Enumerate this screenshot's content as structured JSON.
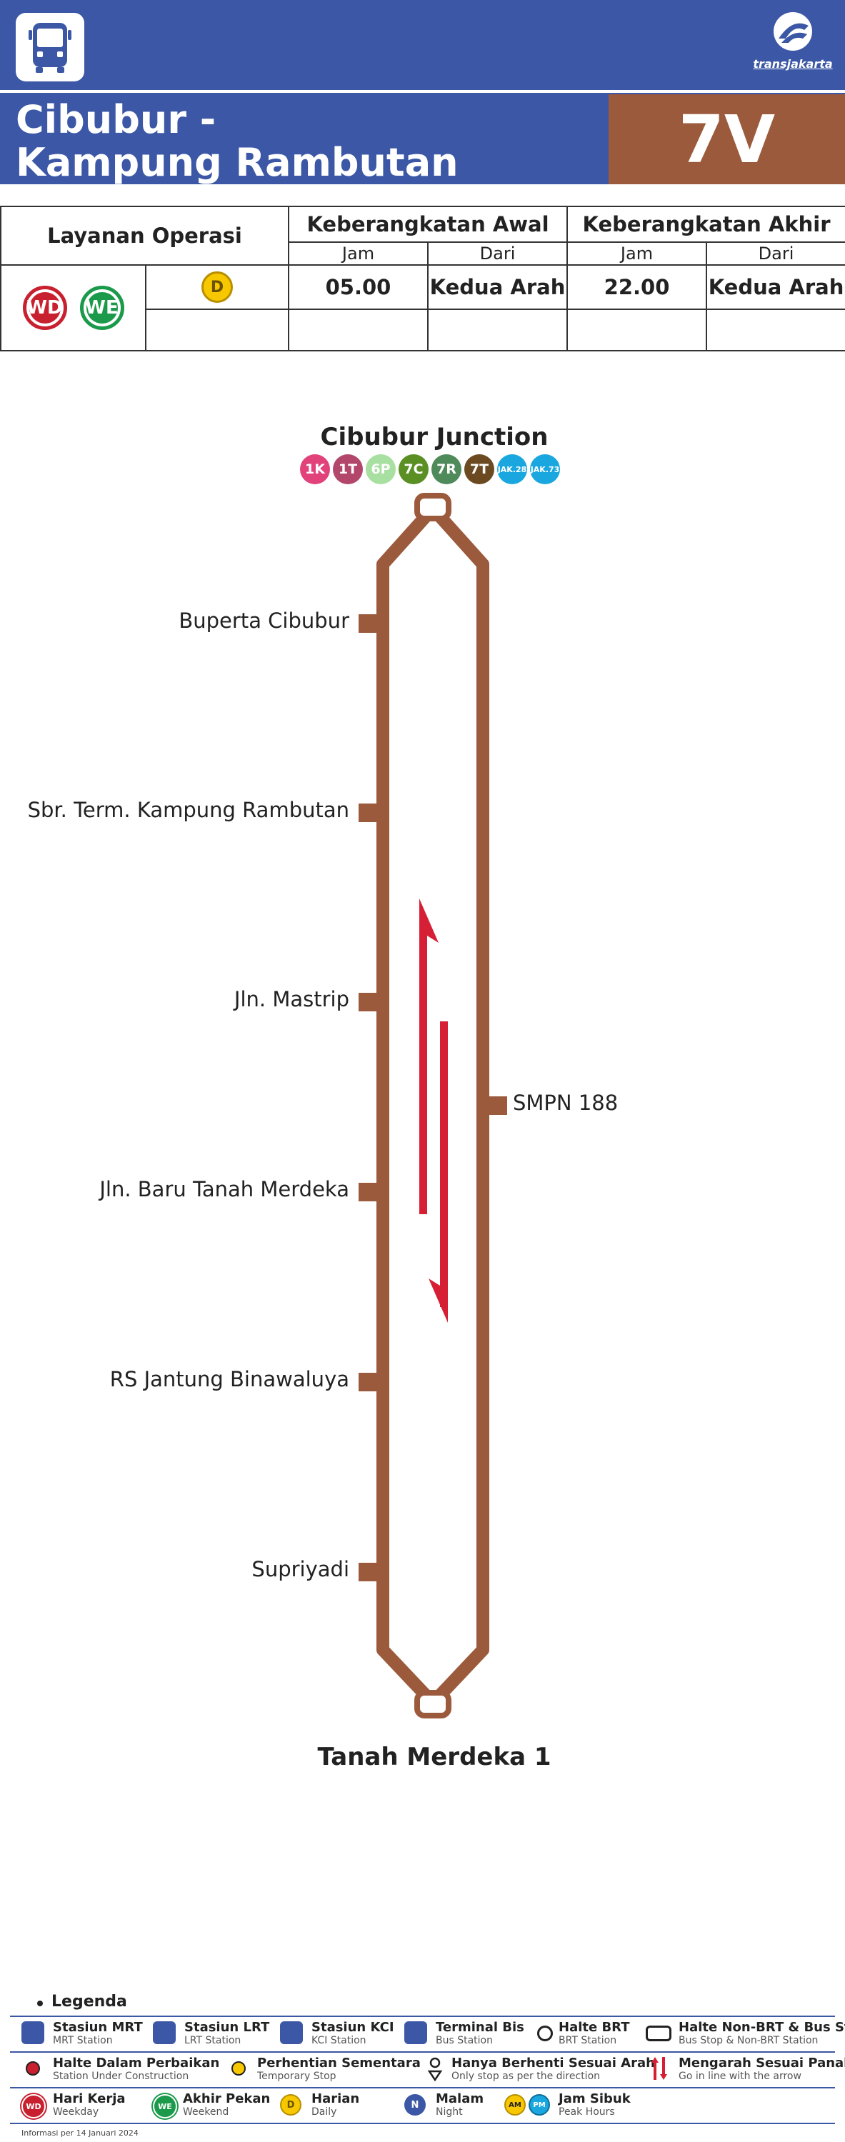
{
  "header": {
    "title_line1": "Cibubur -",
    "title_line2": "Kampung Rambutan",
    "route_code": "7V",
    "logo_text": "transjakarta",
    "colors": {
      "brand_blue": "#3b57a5",
      "route_brown": "#9c5a3c"
    }
  },
  "schedule": {
    "col_service": "Layanan Operasi",
    "col_first": "Keberangkatan Awal",
    "col_last": "Keberangkatan Akhir",
    "sub_time": "Jam",
    "sub_from": "Dari",
    "badges": [
      {
        "text": "WD",
        "color": "#c8202f"
      },
      {
        "text": "WE",
        "color": "#1a9a4a"
      }
    ],
    "daily_badge": {
      "text": "D",
      "color": "#f7c800"
    },
    "first_time": "05.00",
    "first_from": "Kedua Arah",
    "last_time": "22.00",
    "last_from": "Kedua Arah"
  },
  "map": {
    "start_terminal": "Cibubur Junction",
    "end_terminal": "Tanah Merdeka 1",
    "transfers": [
      {
        "code": "1K",
        "color": "#e2427a"
      },
      {
        "code": "1T",
        "color": "#b2476b"
      },
      {
        "code": "6P",
        "color": "#a7e0a0"
      },
      {
        "code": "7C",
        "color": "#5a8f24"
      },
      {
        "code": "7R",
        "color": "#4f8a5a"
      },
      {
        "code": "7T",
        "color": "#6b4a21"
      },
      {
        "code": "JAK.28",
        "color": "#1aa7e0"
      },
      {
        "code": "JAK.73",
        "color": "#1aa7e0"
      }
    ],
    "stops_left": [
      "Buperta Cibubur",
      "Sbr. Term. Kampung Rambutan",
      "Jln. Mastrip",
      "Jln. Baru Tanah Merdeka",
      "RS Jantung Binawaluya",
      "Supriyadi"
    ],
    "stops_right": [
      "SMPN 188"
    ],
    "colors": {
      "route": "#9c5a3c",
      "arrow": "#d61f34"
    }
  },
  "legend": {
    "title": "Legenda",
    "items": [
      {
        "t": "Stasiun MRT",
        "s": "MRT Station",
        "icon": "mrt-icon"
      },
      {
        "t": "Stasiun LRT",
        "s": "LRT Station",
        "icon": "lrt-icon"
      },
      {
        "t": "Stasiun KCI",
        "s": "KCI Station",
        "icon": "kci-icon"
      },
      {
        "t": "Terminal Bis",
        "s": "Bus Station",
        "icon": "bus-terminal-icon"
      },
      {
        "t": "Halte BRT",
        "s": "BRT Station",
        "icon": "brt-stop-icon"
      },
      {
        "t": "Halte Non-BRT & Bus Stop",
        "s": "Bus Stop & Non-BRT Station",
        "icon": "non-brt-stop-icon"
      },
      {
        "t": "Halte Dalam Perbaikan",
        "s": "Station Under Construction",
        "icon": "under-construction-icon"
      },
      {
        "t": "Perhentian Sementara",
        "s": "Temporary Stop",
        "icon": "temporary-stop-icon"
      },
      {
        "t": "Hanya Berhenti Sesuai Arah",
        "s": "Only stop as per the direction",
        "icon": "one-direction-stop-icon"
      },
      {
        "t": "Mengarah Sesuai Panah",
        "s": "Go in line with the arrow",
        "icon": "direction-arrow-icon"
      },
      {
        "t": "Hari Kerja",
        "s": "Weekday",
        "icon": "weekday-icon"
      },
      {
        "t": "Akhir Pekan",
        "s": "Weekend",
        "icon": "weekend-icon"
      },
      {
        "t": "Harian",
        "s": "Daily",
        "icon": "daily-icon"
      },
      {
        "t": "Malam",
        "s": "Night",
        "icon": "night-icon"
      },
      {
        "t": "Jam Sibuk",
        "s": "Peak Hours",
        "icon": "peak-hours-icon"
      }
    ],
    "icon_texts": {
      "wd": "WD",
      "we": "WE",
      "d": "D",
      "n": "N",
      "am": "AM",
      "pm": "PM"
    },
    "footer": "Informasi per 14 Januari 2024"
  }
}
